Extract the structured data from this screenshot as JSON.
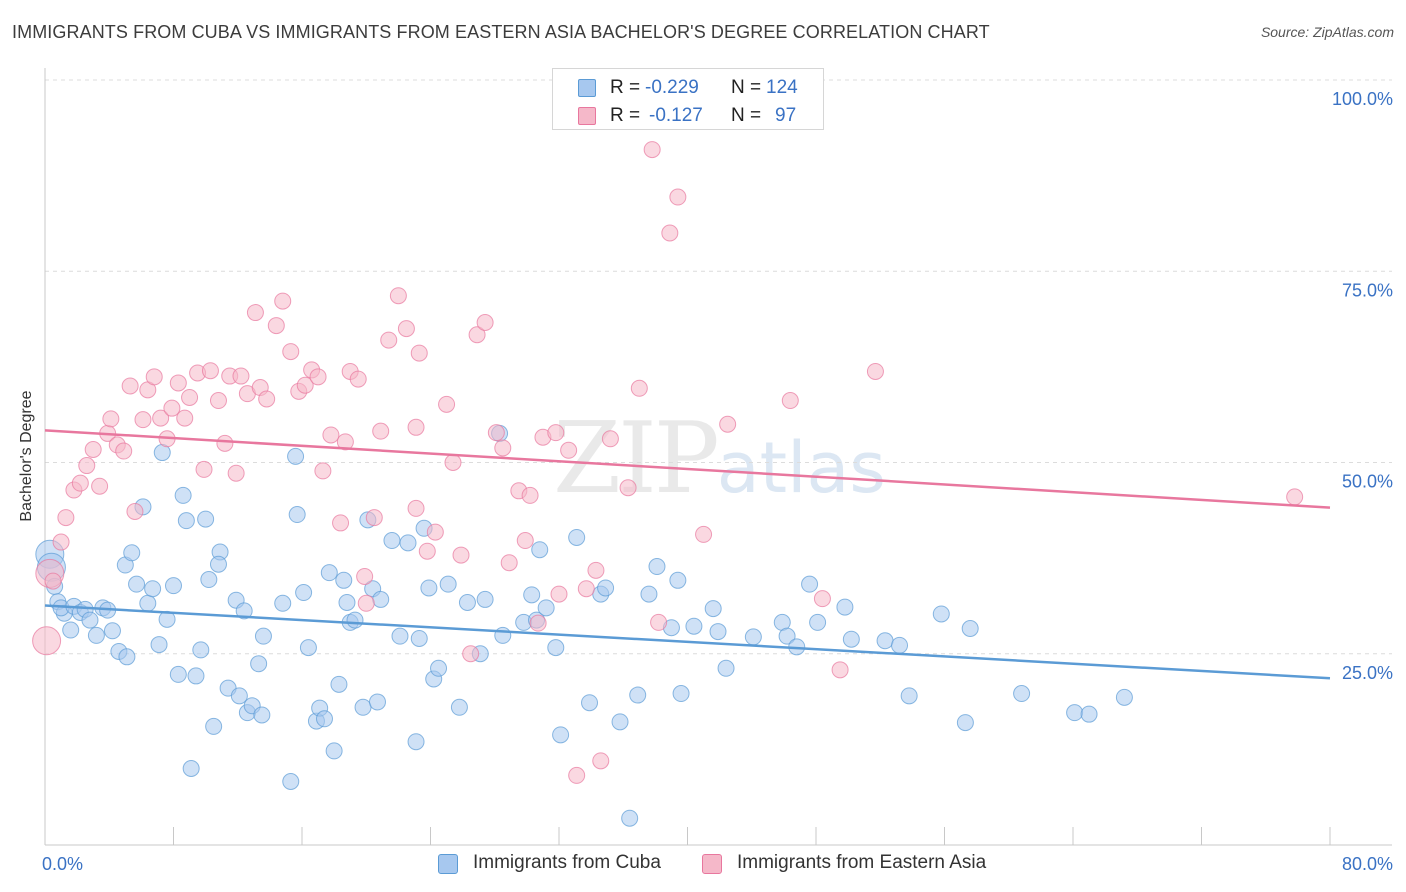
{
  "title": "IMMIGRANTS FROM CUBA VS IMMIGRANTS FROM EASTERN ASIA BACHELOR'S DEGREE CORRELATION CHART",
  "source": "Source: ZipAtlas.com",
  "watermark": {
    "zip": "ZIP",
    "atlas": "atlas"
  },
  "stats": [
    {
      "r_label": "R =",
      "r_value": "-0.229",
      "n_label": "N =",
      "n_value": "124",
      "color": "#a7c8ef"
    },
    {
      "r_label": "R =",
      "r_value": "-0.127",
      "n_label": "N =",
      "n_value": "97",
      "color": "#f5b8c9"
    }
  ],
  "chart_data": {
    "type": "scatter",
    "title": "IMMIGRANTS FROM CUBA VS IMMIGRANTS FROM EASTERN ASIA BACHELOR'S DEGREE CORRELATION CHART",
    "xlabel": "",
    "ylabel": "Bachelor's Degree",
    "xlim": [
      0,
      80
    ],
    "ylim": [
      0,
      100
    ],
    "x_tick_labels": [
      "0.0%",
      "80.0%"
    ],
    "y_ticks": [
      25,
      50,
      75,
      100
    ],
    "y_tick_labels": [
      "25.0%",
      "50.0%",
      "75.0%",
      "100.0%"
    ],
    "grid": true,
    "legend_position": "bottom-center",
    "series": [
      {
        "name": "Immigrants from Cuba",
        "color": "#5b9bd5",
        "fill": "#a7c8ef",
        "trend": {
          "x": [
            0,
            80
          ],
          "y": [
            31.3,
            21.8
          ]
        },
        "points": [
          [
            0.3,
            38.0
          ],
          [
            0.4,
            36.3
          ],
          [
            0.6,
            33.8
          ],
          [
            0.8,
            31.8
          ],
          [
            1.2,
            30.3
          ],
          [
            1.0,
            31.0
          ],
          [
            1.6,
            28.1
          ],
          [
            1.8,
            31.2
          ],
          [
            2.2,
            30.4
          ],
          [
            2.5,
            30.8
          ],
          [
            2.8,
            29.4
          ],
          [
            3.2,
            27.4
          ],
          [
            3.6,
            31.0
          ],
          [
            3.9,
            30.7
          ],
          [
            4.2,
            28.0
          ],
          [
            4.6,
            25.3
          ],
          [
            5.1,
            24.6
          ],
          [
            5.0,
            36.6
          ],
          [
            5.4,
            38.2
          ],
          [
            5.7,
            34.1
          ],
          [
            6.1,
            44.2
          ],
          [
            6.4,
            31.6
          ],
          [
            6.7,
            33.5
          ],
          [
            7.1,
            26.2
          ],
          [
            7.3,
            51.3
          ],
          [
            7.6,
            29.5
          ],
          [
            8.0,
            33.9
          ],
          [
            8.3,
            22.3
          ],
          [
            8.6,
            45.7
          ],
          [
            8.8,
            42.4
          ],
          [
            9.1,
            10.0
          ],
          [
            9.4,
            22.1
          ],
          [
            9.7,
            25.5
          ],
          [
            10.0,
            42.6
          ],
          [
            10.2,
            34.7
          ],
          [
            10.5,
            15.5
          ],
          [
            10.9,
            38.3
          ],
          [
            10.8,
            36.7
          ],
          [
            11.4,
            20.5
          ],
          [
            11.9,
            32.0
          ],
          [
            12.1,
            19.5
          ],
          [
            12.4,
            30.6
          ],
          [
            12.6,
            17.3
          ],
          [
            12.9,
            18.2
          ],
          [
            13.3,
            23.7
          ],
          [
            13.5,
            17.0
          ],
          [
            13.6,
            27.3
          ],
          [
            14.8,
            31.6
          ],
          [
            15.3,
            8.3
          ],
          [
            15.6,
            50.8
          ],
          [
            15.7,
            43.2
          ],
          [
            16.1,
            33.0
          ],
          [
            16.4,
            25.8
          ],
          [
            16.9,
            16.2
          ],
          [
            17.1,
            17.9
          ],
          [
            17.4,
            16.5
          ],
          [
            17.7,
            35.6
          ],
          [
            18.0,
            12.3
          ],
          [
            18.3,
            21.0
          ],
          [
            18.6,
            34.6
          ],
          [
            18.8,
            31.7
          ],
          [
            19.0,
            29.1
          ],
          [
            19.3,
            29.4
          ],
          [
            19.8,
            18.0
          ],
          [
            20.1,
            42.5
          ],
          [
            20.4,
            33.5
          ],
          [
            20.7,
            18.7
          ],
          [
            20.9,
            32.1
          ],
          [
            21.6,
            39.8
          ],
          [
            22.1,
            27.3
          ],
          [
            22.6,
            39.5
          ],
          [
            23.1,
            13.5
          ],
          [
            23.3,
            27.0
          ],
          [
            23.6,
            41.4
          ],
          [
            23.9,
            33.6
          ],
          [
            24.2,
            21.7
          ],
          [
            24.5,
            23.1
          ],
          [
            25.1,
            34.1
          ],
          [
            25.8,
            18.0
          ],
          [
            26.3,
            31.7
          ],
          [
            27.1,
            25.0
          ],
          [
            27.4,
            32.1
          ],
          [
            28.3,
            53.8
          ],
          [
            28.5,
            27.4
          ],
          [
            29.8,
            29.1
          ],
          [
            30.3,
            32.7
          ],
          [
            30.6,
            29.4
          ],
          [
            30.8,
            38.6
          ],
          [
            31.2,
            31.0
          ],
          [
            31.8,
            25.8
          ],
          [
            32.1,
            14.4
          ],
          [
            33.1,
            40.2
          ],
          [
            33.9,
            18.6
          ],
          [
            34.6,
            32.8
          ],
          [
            34.9,
            33.6
          ],
          [
            35.8,
            16.1
          ],
          [
            36.9,
            19.6
          ],
          [
            37.6,
            32.8
          ],
          [
            38.1,
            36.4
          ],
          [
            39.0,
            28.4
          ],
          [
            39.4,
            34.6
          ],
          [
            39.6,
            19.8
          ],
          [
            40.4,
            28.6
          ],
          [
            41.6,
            30.9
          ],
          [
            41.9,
            27.9
          ],
          [
            42.4,
            23.1
          ],
          [
            44.1,
            27.2
          ],
          [
            45.9,
            29.1
          ],
          [
            46.2,
            27.3
          ],
          [
            46.8,
            25.9
          ],
          [
            47.6,
            34.1
          ],
          [
            48.1,
            29.1
          ],
          [
            49.8,
            31.1
          ],
          [
            50.2,
            26.9
          ],
          [
            52.3,
            26.7
          ],
          [
            53.2,
            26.1
          ],
          [
            53.8,
            19.5
          ],
          [
            55.8,
            30.2
          ],
          [
            57.3,
            16.0
          ],
          [
            57.6,
            28.3
          ],
          [
            60.8,
            19.8
          ],
          [
            64.1,
            17.3
          ],
          [
            65.0,
            17.1
          ],
          [
            67.2,
            19.3
          ],
          [
            36.4,
            3.5
          ]
        ]
      },
      {
        "name": "Immigrants from Eastern Asia",
        "color": "#e8779e",
        "fill": "#f5b8c9",
        "trend": {
          "x": [
            0,
            80
          ],
          "y": [
            54.2,
            44.1
          ]
        },
        "points": [
          [
            0.1,
            26.7
          ],
          [
            0.3,
            35.5
          ],
          [
            0.5,
            34.5
          ],
          [
            1.0,
            39.6
          ],
          [
            1.3,
            42.8
          ],
          [
            1.8,
            46.4
          ],
          [
            2.2,
            47.3
          ],
          [
            2.6,
            49.6
          ],
          [
            3.0,
            51.7
          ],
          [
            3.4,
            46.9
          ],
          [
            3.9,
            53.8
          ],
          [
            4.1,
            55.7
          ],
          [
            4.5,
            52.3
          ],
          [
            4.9,
            51.5
          ],
          [
            5.3,
            60.0
          ],
          [
            5.6,
            43.6
          ],
          [
            6.1,
            55.6
          ],
          [
            6.4,
            59.5
          ],
          [
            6.8,
            61.2
          ],
          [
            7.2,
            55.8
          ],
          [
            7.6,
            53.1
          ],
          [
            7.9,
            57.1
          ],
          [
            8.3,
            60.4
          ],
          [
            8.7,
            55.8
          ],
          [
            9.0,
            58.5
          ],
          [
            9.5,
            61.7
          ],
          [
            9.9,
            49.1
          ],
          [
            10.3,
            62.0
          ],
          [
            10.8,
            58.1
          ],
          [
            11.2,
            52.5
          ],
          [
            11.5,
            61.3
          ],
          [
            11.9,
            48.6
          ],
          [
            12.2,
            61.3
          ],
          [
            12.6,
            59.0
          ],
          [
            13.1,
            69.6
          ],
          [
            13.4,
            59.8
          ],
          [
            13.8,
            58.3
          ],
          [
            14.4,
            67.9
          ],
          [
            14.8,
            71.1
          ],
          [
            15.3,
            64.5
          ],
          [
            15.8,
            59.3
          ],
          [
            16.2,
            60.1
          ],
          [
            16.6,
            62.1
          ],
          [
            17.0,
            61.2
          ],
          [
            17.3,
            48.9
          ],
          [
            17.8,
            53.6
          ],
          [
            18.4,
            42.1
          ],
          [
            18.7,
            52.7
          ],
          [
            19.0,
            61.9
          ],
          [
            19.5,
            60.9
          ],
          [
            20.0,
            31.6
          ],
          [
            20.5,
            42.8
          ],
          [
            20.9,
            54.1
          ],
          [
            21.4,
            66.0
          ],
          [
            22.0,
            71.8
          ],
          [
            22.5,
            67.5
          ],
          [
            23.1,
            54.6
          ],
          [
            23.3,
            64.3
          ],
          [
            23.8,
            38.4
          ],
          [
            24.3,
            40.9
          ],
          [
            25.0,
            57.6
          ],
          [
            25.4,
            50.0
          ],
          [
            25.9,
            37.9
          ],
          [
            26.5,
            25.0
          ],
          [
            26.9,
            66.7
          ],
          [
            27.4,
            68.3
          ],
          [
            28.1,
            53.9
          ],
          [
            28.5,
            51.9
          ],
          [
            28.9,
            36.9
          ],
          [
            29.5,
            46.3
          ],
          [
            29.9,
            39.8
          ],
          [
            30.2,
            45.7
          ],
          [
            31.0,
            53.3
          ],
          [
            31.8,
            53.9
          ],
          [
            32.0,
            32.8
          ],
          [
            32.6,
            51.6
          ],
          [
            33.1,
            9.1
          ],
          [
            33.7,
            33.5
          ],
          [
            34.3,
            35.9
          ],
          [
            34.6,
            11.0
          ],
          [
            35.2,
            53.1
          ],
          [
            36.3,
            46.7
          ],
          [
            37.0,
            59.7
          ],
          [
            37.8,
            90.9
          ],
          [
            38.2,
            29.1
          ],
          [
            38.9,
            80.0
          ],
          [
            39.4,
            84.7
          ],
          [
            41.0,
            40.6
          ],
          [
            42.5,
            55.0
          ],
          [
            46.4,
            58.1
          ],
          [
            48.4,
            32.2
          ],
          [
            49.5,
            22.9
          ],
          [
            51.7,
            61.9
          ],
          [
            77.8,
            45.5
          ],
          [
            19.9,
            35.1
          ],
          [
            23.1,
            44.0
          ],
          [
            30.7,
            29.0
          ]
        ]
      }
    ]
  }
}
